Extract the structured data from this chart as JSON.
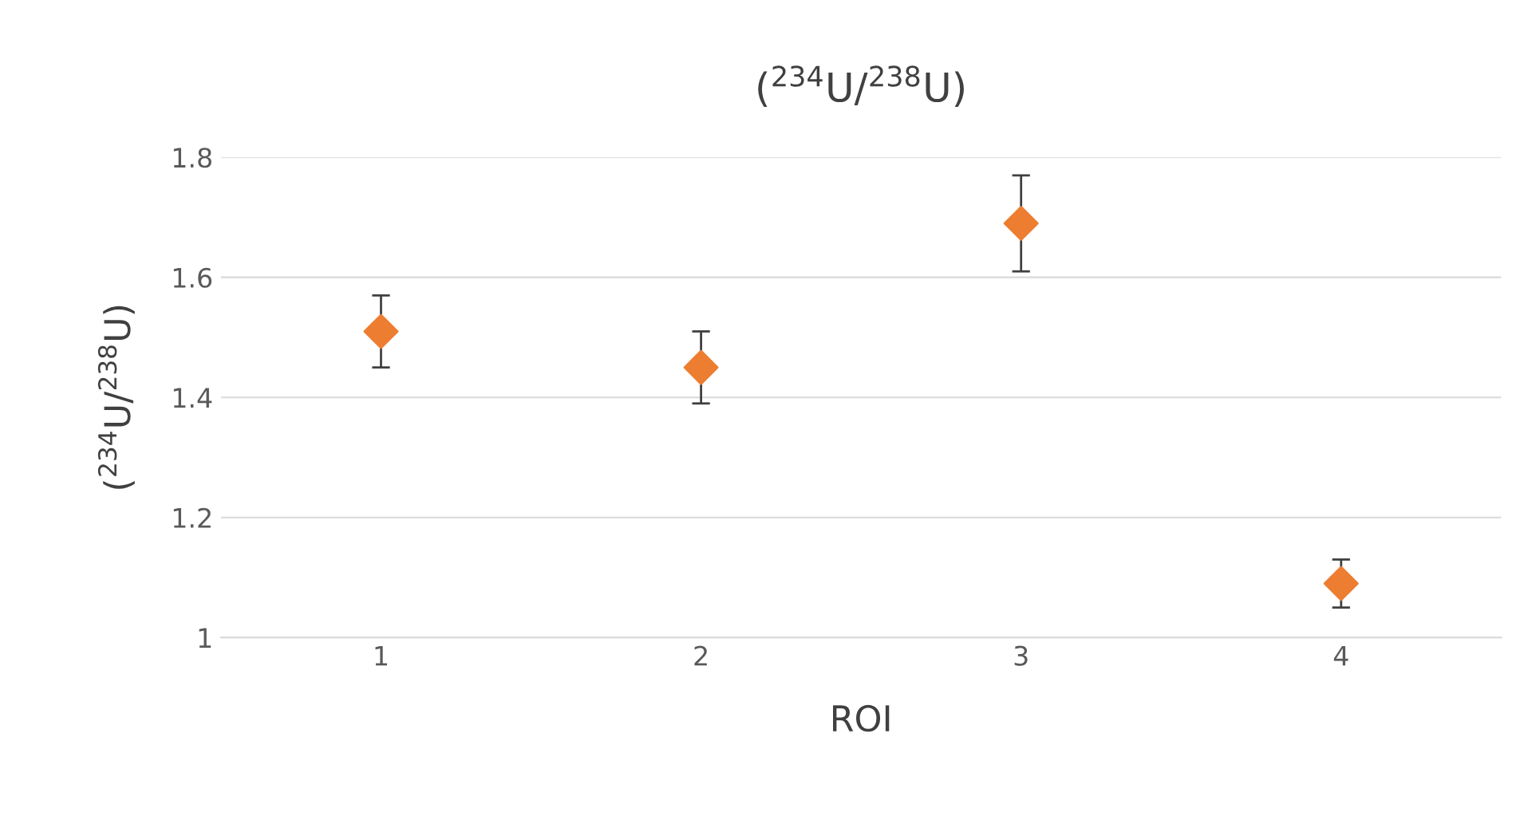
{
  "chart_data": {
    "type": "scatter",
    "title": "($^{234}$U/$^{238}$U)",
    "xlabel": "ROI",
    "ylabel": "($^{234}$U/$^{238}$U)",
    "categories": [
      "1",
      "2",
      "3",
      "4"
    ],
    "series": [
      {
        "color": "#ed7d31",
        "values": [
          1.51,
          1.45,
          1.69,
          1.09
        ],
        "errors": [
          0.06,
          0.06,
          0.08,
          0.04
        ]
      }
    ],
    "ylim": [
      1,
      1.8
    ],
    "yticks": [
      1,
      1.2,
      1.4,
      1.6,
      1.8
    ],
    "grid": "y",
    "marker": "diamond",
    "legend": false
  }
}
